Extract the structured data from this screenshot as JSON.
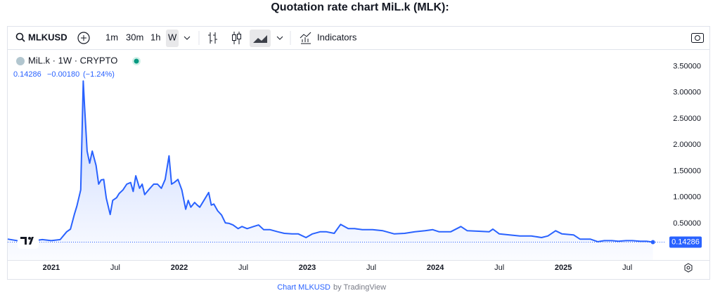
{
  "page_title": "Quotation rate chart MiL.k (MLK):",
  "toolbar": {
    "symbol": "MLKUSD",
    "intervals": [
      "1m",
      "30m",
      "1h",
      "W"
    ],
    "indicators": "Indicators"
  },
  "legend": {
    "name": "MiL.k · 1W · CRYPTO",
    "change": "−0.00180",
    "change_pct": "(−1.24%)"
  },
  "footer": {
    "link": "Chart MLKUSD",
    "by": "by TradingView"
  },
  "chart_data": {
    "type": "line",
    "color": "#2962ff",
    "grid": false,
    "x": [
      2020.66,
      2020.76,
      2020.87,
      2020.93,
      2021.0,
      2021.07,
      2021.12,
      2021.15,
      2021.18,
      2021.2,
      2021.23,
      2021.25,
      2021.26,
      2021.28,
      2021.3,
      2021.32,
      2021.35,
      2021.37,
      2021.39,
      2021.41,
      2021.43,
      2021.46,
      2021.48,
      2021.51,
      2021.53,
      2021.56,
      2021.59,
      2021.62,
      2021.64,
      2021.66,
      2021.69,
      2021.71,
      2021.73,
      2021.76,
      2021.8,
      2021.83,
      2021.86,
      2021.89,
      2021.92,
      2021.94,
      2021.96,
      2021.99,
      2022.02,
      2022.05,
      2022.07,
      2022.09,
      2022.12,
      2022.14,
      2022.16,
      2022.19,
      2022.23,
      2022.25,
      2022.27,
      2022.3,
      2022.33,
      2022.36,
      2022.39,
      2022.42,
      2022.46,
      2022.49,
      2022.53,
      2022.58,
      2022.62,
      2022.66,
      2022.71,
      2022.77,
      2022.82,
      2022.88,
      2022.93,
      2022.99,
      2023.04,
      2023.1,
      2023.15,
      2023.21,
      2023.26,
      2023.32,
      2023.37,
      2023.43,
      2023.51,
      2023.59,
      2023.68,
      2023.76,
      2023.84,
      2023.92,
      2023.98,
      2024.03,
      2024.12,
      2024.2,
      2024.25,
      2024.34,
      2024.42,
      2024.45,
      2024.5,
      2024.58,
      2024.66,
      2024.75,
      2024.83,
      2024.88,
      2024.94,
      2024.99,
      2025.08,
      2025.13,
      2025.21,
      2025.27,
      2025.32,
      2025.38,
      2025.43,
      2025.49,
      2025.54,
      2025.6,
      2025.65,
      2025.7
    ],
    "values": [
      0.2,
      0.16,
      0.17,
      0.19,
      0.17,
      0.19,
      0.34,
      0.39,
      0.67,
      0.83,
      1.14,
      3.22,
      2.75,
      1.88,
      1.65,
      1.88,
      1.61,
      1.25,
      1.33,
      1.34,
      0.98,
      0.67,
      0.94,
      0.99,
      1.07,
      1.14,
      1.25,
      1.28,
      1.11,
      1.41,
      1.17,
      1.25,
      1.05,
      1.14,
      1.25,
      1.25,
      1.17,
      1.34,
      1.79,
      1.25,
      1.28,
      1.34,
      1.14,
      0.77,
      0.94,
      0.81,
      0.9,
      0.85,
      0.81,
      0.93,
      1.09,
      0.85,
      0.87,
      0.74,
      0.66,
      0.51,
      0.5,
      0.47,
      0.4,
      0.44,
      0.4,
      0.44,
      0.47,
      0.38,
      0.38,
      0.34,
      0.31,
      0.3,
      0.3,
      0.23,
      0.3,
      0.34,
      0.34,
      0.31,
      0.48,
      0.4,
      0.4,
      0.38,
      0.38,
      0.36,
      0.3,
      0.31,
      0.34,
      0.36,
      0.38,
      0.34,
      0.34,
      0.44,
      0.36,
      0.35,
      0.34,
      0.39,
      0.3,
      0.28,
      0.26,
      0.26,
      0.23,
      0.26,
      0.36,
      0.3,
      0.28,
      0.2,
      0.2,
      0.15,
      0.17,
      0.17,
      0.16,
      0.17,
      0.17,
      0.16,
      0.16,
      0.14286
    ],
    "xlim": [
      2020.66,
      2025.79
    ],
    "xticks": [
      2021,
      {
        "value": 2021.5,
        "label": "Jul"
      },
      2022,
      {
        "value": 2022.5,
        "label": "Jul"
      },
      2023,
      {
        "value": 2023.5,
        "label": "Jul"
      },
      2024,
      {
        "value": 2024.5,
        "label": "Jul"
      },
      2025,
      {
        "value": 2025.5,
        "label": "Jul"
      }
    ],
    "ylim": [
      -0.2,
      3.8
    ],
    "yticks": [
      {
        "value": 0.5,
        "label": "0.50000"
      },
      {
        "value": 1,
        "label": "1.00000"
      },
      {
        "value": 1.5,
        "label": "1.50000"
      },
      {
        "value": 2,
        "label": "2.00000"
      },
      {
        "value": 2.5,
        "label": "2.50000"
      },
      {
        "value": 3,
        "label": "3.00000"
      },
      {
        "value": 3.5,
        "label": "3.50000"
      }
    ]
  }
}
